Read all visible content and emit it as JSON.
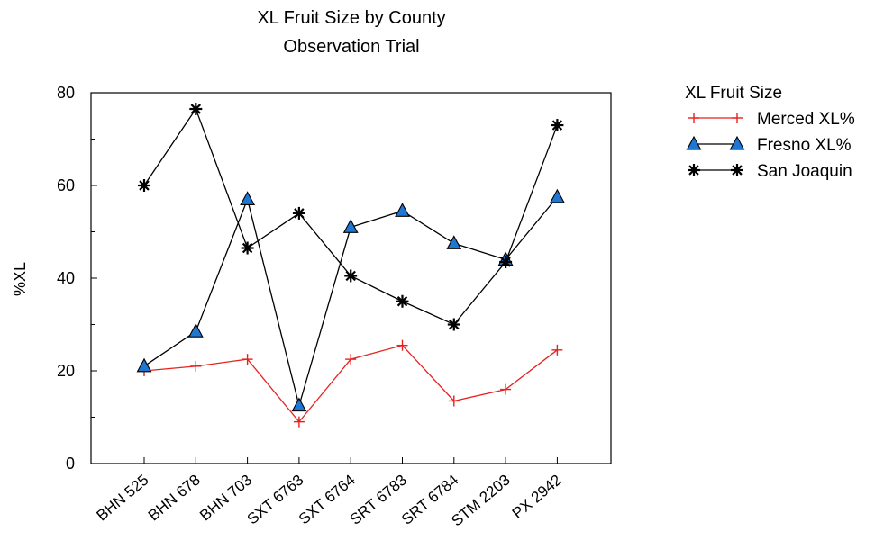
{
  "chart_data": {
    "type": "line",
    "title": "XL Fruit Size by County",
    "subtitle": "Observation Trial",
    "xlabel": "",
    "ylabel": "%XL",
    "ylim": [
      0,
      80
    ],
    "yticks": [
      "0",
      "20",
      "40",
      "60",
      "80"
    ],
    "categories": [
      "BHN 525",
      "BHN 678",
      "BHN 703",
      "SXT 6763",
      "SXT 6764",
      "SRT 6783",
      "SRT 6784",
      "STM 2203",
      "PX 2942"
    ],
    "legend_title": "XL Fruit Size",
    "legend_position": "right",
    "grid": false,
    "series": [
      {
        "name": "Merced XL%",
        "color": "#e8211f",
        "marker": "plus",
        "values": [
          20,
          21,
          22.5,
          9,
          22.5,
          25.5,
          13.5,
          16,
          24.5
        ]
      },
      {
        "name": "Fresno XL%",
        "color": "#000000",
        "marker_fill": "#1f77d4",
        "marker": "triangle",
        "values": [
          21,
          28.5,
          57,
          12.5,
          51,
          54.5,
          47.5,
          44,
          57.5
        ]
      },
      {
        "name": "San Joaquin",
        "color": "#000000",
        "marker": "asterisk",
        "values": [
          60,
          76.5,
          46.5,
          54,
          40.5,
          35,
          30,
          43.5,
          73
        ]
      }
    ]
  }
}
